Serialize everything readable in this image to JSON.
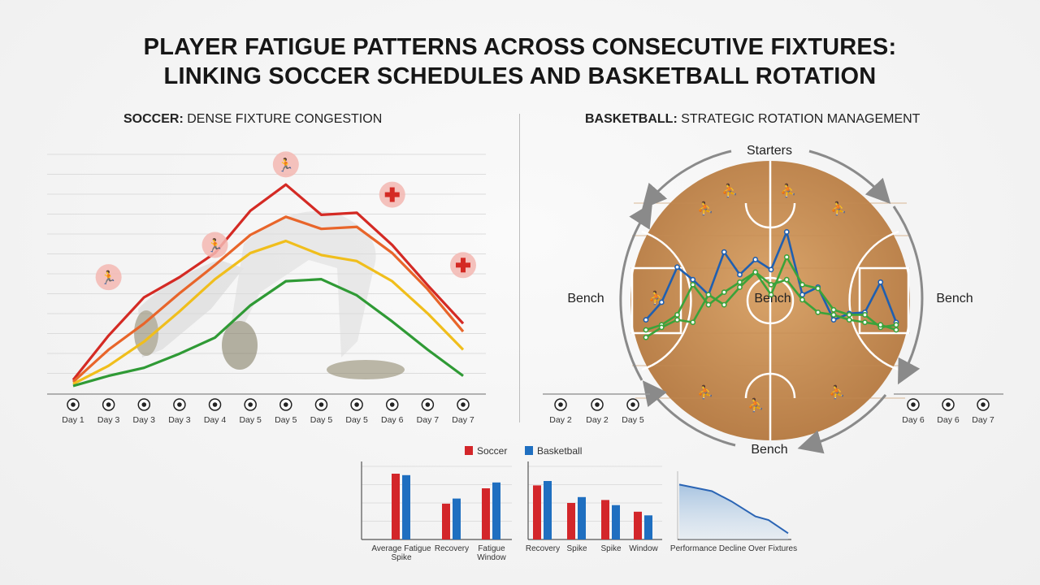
{
  "title_line1": "PLAYER FATIGUE PATTERNS ACROSS CONSECUTIVE FIXTURES:",
  "title_line2": "LINKING SOCCER SCHEDULES AND BASKETBALL ROTATION",
  "soccer_panel": {
    "title_bold": "SOCCER:",
    "title_rest": " DENSE FIXTURE CONGESTION"
  },
  "basketball_panel": {
    "title_bold": "BASKETBALL:",
    "title_rest": " STRATEGIC ROTATION MANAGEMENT",
    "labels": {
      "top": "Starters",
      "left": "Bench",
      "center": "Bench",
      "right": "Bench",
      "bottom": "Bench"
    }
  },
  "colors": {
    "red": "#d42a24",
    "orange": "#e8652a",
    "yellow": "#f0be1c",
    "green": "#2f9a35",
    "blue": "#1f5fb0",
    "basket_green": "#3aa33a",
    "soccer_bar": "#d3262a",
    "basketball_bar": "#1f6fc0"
  },
  "chart_data": [
    {
      "type": "line",
      "x": [
        "Day 1",
        "Day 3",
        "Day 3",
        "Day 3",
        "Day 4",
        "Day 5",
        "Day 5",
        "Day 5",
        "Day 5",
        "Day 6",
        "Day 7",
        "Day 7"
      ],
      "series": [
        {
          "values": [
            3,
            25,
            44,
            54,
            66,
            87,
            100,
            85,
            86,
            70,
            50,
            31
          ]
        },
        {
          "values": [
            2,
            18,
            31,
            46,
            60,
            75,
            84,
            78,
            79,
            66,
            48,
            27
          ]
        },
        {
          "values": [
            1,
            10,
            22,
            37,
            53,
            66,
            72,
            65,
            62,
            52,
            36,
            18
          ]
        },
        {
          "values": [
            0,
            5,
            9,
            16,
            24,
            40,
            52,
            53,
            45,
            32,
            18,
            5
          ]
        }
      ],
      "ylim": [
        0,
        115
      ],
      "grid": true,
      "annotations": [
        "fatigue-icon",
        "fatigue-icon",
        "fatigue-icon",
        "medical-cross-icon",
        "medical-cross-icon"
      ]
    },
    {
      "type": "line",
      "x_left": [
        "Day 2",
        "Day 2",
        "Day 5"
      ],
      "x_right": [
        "Day 6",
        "Day 6",
        "Day 7"
      ],
      "series": [
        {
          "values": [
            30,
            44,
            72,
            62,
            50,
            84,
            66,
            78,
            70,
            100,
            50,
            56,
            30,
            35,
            36,
            60,
            28
          ]
        },
        {
          "values": [
            22,
            26,
            34,
            58,
            42,
            52,
            60,
            68,
            50,
            80,
            58,
            55,
            38,
            34,
            34,
            24,
            26
          ]
        },
        {
          "values": [
            16,
            24,
            30,
            28,
            50,
            42,
            56,
            68,
            58,
            62,
            46,
            36,
            34,
            30,
            28,
            26,
            22
          ]
        }
      ],
      "ylim": [
        0,
        110
      ]
    },
    {
      "type": "bar",
      "legend": [
        "Soccer",
        "Basketball"
      ],
      "legend_position": "top",
      "categories": [
        "Average Fatigue Spike",
        "Recovery",
        "Fatigue Window"
      ],
      "series": [
        {
          "name": "Soccer",
          "values": [
            90,
            49,
            70
          ]
        },
        {
          "name": "Basketball",
          "values": [
            88,
            56,
            78
          ]
        }
      ],
      "ylim": [
        0,
        100
      ],
      "grid": true
    },
    {
      "type": "bar",
      "categories": [
        "Recovery",
        "Spike",
        "Spike",
        "Window"
      ],
      "series": [
        {
          "name": "Soccer",
          "values": [
            74,
            50,
            54,
            38
          ]
        },
        {
          "name": "Basketball",
          "values": [
            80,
            58,
            47,
            33
          ]
        }
      ],
      "ylim": [
        0,
        100
      ],
      "grid": true
    },
    {
      "type": "area",
      "xlabel": "Performance Decline Over Fixtures",
      "values": [
        86,
        75,
        58,
        33,
        27,
        5
      ],
      "ylim": [
        0,
        100
      ]
    }
  ]
}
